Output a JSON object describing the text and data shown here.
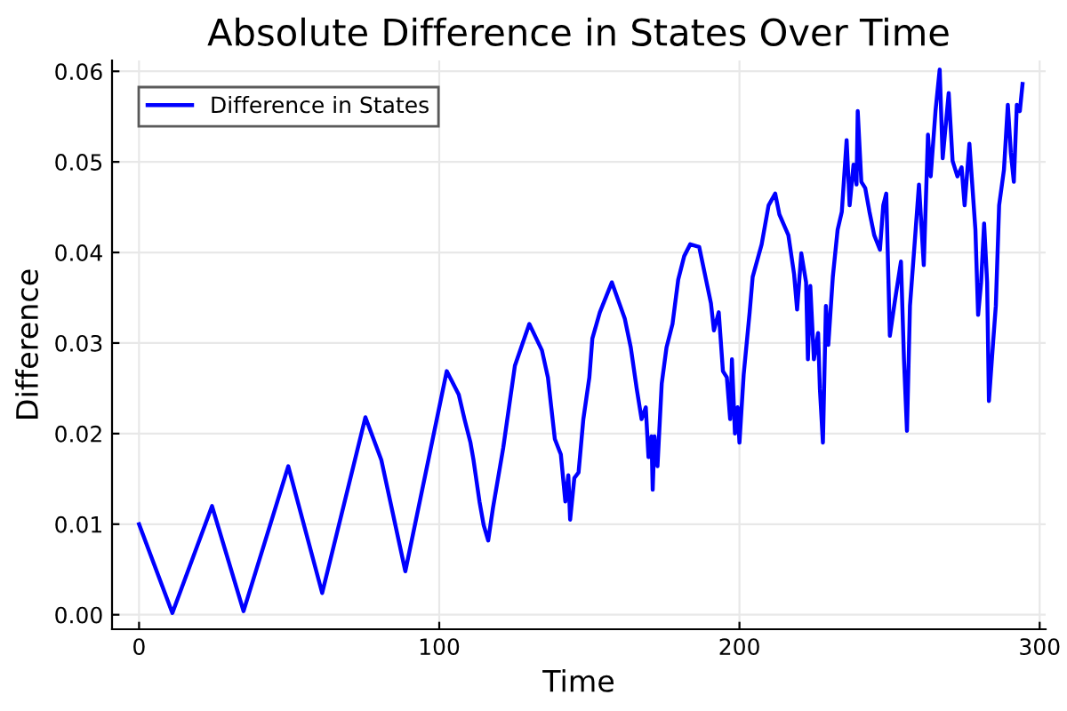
{
  "chart_data": {
    "type": "line",
    "title": "Absolute Difference in States Over Time",
    "xlabel": "Time",
    "ylabel": "Difference",
    "xlim": [
      -9,
      302
    ],
    "ylim": [
      -0.0016,
      0.0612
    ],
    "xticks": [
      0,
      100,
      200,
      300
    ],
    "yticks": [
      {
        "value": 0,
        "label": "0.00"
      },
      {
        "value": 0.01,
        "label": "0.01"
      },
      {
        "value": 0.02,
        "label": "0.02"
      },
      {
        "value": 0.03,
        "label": "0.03"
      },
      {
        "value": 0.04,
        "label": "0.04"
      },
      {
        "value": 0.05,
        "label": "0.05"
      },
      {
        "value": 0.06,
        "label": "0.06"
      }
    ],
    "grid": true,
    "legend": "top left",
    "marker": "none",
    "line_style": "solid",
    "series": [
      {
        "name": "Difference in States",
        "color": "#0000ff",
        "x": [
          0,
          11.1,
          24.3,
          34.8,
          49.7,
          61,
          75.4,
          80.7,
          88.7,
          102.5,
          106.5,
          108.4,
          110.4,
          111.4,
          113.4,
          114.8,
          116.3,
          117.9,
          121.3,
          125.2,
          130,
          134.2,
          136.2,
          138.5,
          140.5,
          142,
          143,
          143.6,
          145,
          146.4,
          148,
          150,
          151,
          153.5,
          157.5,
          161.8,
          163.8,
          165.8,
          167.4,
          168.8,
          169.7,
          170.7,
          171.1,
          171.7,
          172.7,
          174.1,
          175.7,
          177.7,
          179.6,
          181.6,
          183.6,
          186.6,
          190.5,
          191.5,
          193.1,
          194.5,
          195.8,
          196.9,
          197.5,
          198.5,
          199.4,
          200,
          201.4,
          203.4,
          204.4,
          207.4,
          209.7,
          211.9,
          213.3,
          216.3,
          218.2,
          219.2,
          220.6,
          222.2,
          222.8,
          223.6,
          224.8,
          226.2,
          226.8,
          227.8,
          228.8,
          229.6,
          231.1,
          232.7,
          234.1,
          235.7,
          236.7,
          238,
          239,
          239.4,
          240.6,
          241.9,
          243.3,
          244.9,
          246.8,
          247.9,
          248.9,
          250.1,
          251.8,
          253.8,
          254.8,
          255.8,
          256.8,
          258.4,
          259.8,
          261.4,
          262.8,
          263.7,
          265.3,
          266.7,
          267.7,
          269.7,
          271,
          272.6,
          274,
          275,
          276.6,
          278.6,
          279.5,
          280.5,
          281.5,
          282.5,
          283.1,
          284.5,
          285.4,
          286.5,
          288.1,
          289.4,
          290.4,
          291.4,
          292.4,
          293.4,
          294.3
        ],
        "values": [
          0.01,
          0.0002,
          0.012,
          0.0004,
          0.0164,
          0.0024,
          0.0218,
          0.0171,
          0.0048,
          0.0269,
          0.0243,
          0.0216,
          0.019,
          0.0171,
          0.0125,
          0.0099,
          0.0082,
          0.0118,
          0.0184,
          0.0275,
          0.0321,
          0.0292,
          0.0262,
          0.0194,
          0.0177,
          0.0125,
          0.0154,
          0.0105,
          0.0151,
          0.0157,
          0.0216,
          0.0262,
          0.0305,
          0.0334,
          0.0367,
          0.0327,
          0.0295,
          0.0249,
          0.0216,
          0.0229,
          0.0174,
          0.0197,
          0.0138,
          0.0197,
          0.0164,
          0.0255,
          0.0295,
          0.0321,
          0.037,
          0.0396,
          0.0409,
          0.0406,
          0.0344,
          0.0314,
          0.0334,
          0.0269,
          0.0262,
          0.0216,
          0.0282,
          0.02,
          0.0229,
          0.019,
          0.0265,
          0.0334,
          0.0373,
          0.0409,
          0.0452,
          0.0465,
          0.0442,
          0.0419,
          0.0376,
          0.0337,
          0.0399,
          0.0367,
          0.0282,
          0.0363,
          0.0282,
          0.0311,
          0.0249,
          0.019,
          0.0341,
          0.0298,
          0.0373,
          0.0425,
          0.0445,
          0.0524,
          0.0452,
          0.0497,
          0.0475,
          0.0556,
          0.0478,
          0.0471,
          0.0445,
          0.0419,
          0.0403,
          0.0452,
          0.0465,
          0.0308,
          0.0347,
          0.039,
          0.0282,
          0.0203,
          0.0341,
          0.0412,
          0.0475,
          0.0386,
          0.053,
          0.0484,
          0.0556,
          0.0602,
          0.0504,
          0.0576,
          0.0501,
          0.0484,
          0.0494,
          0.0452,
          0.052,
          0.0425,
          0.0331,
          0.0367,
          0.0432,
          0.0367,
          0.0236,
          0.0301,
          0.0341,
          0.0452,
          0.0491,
          0.0563,
          0.051,
          0.0478,
          0.0563,
          0.0556,
          0.0586
        ]
      }
    ]
  }
}
